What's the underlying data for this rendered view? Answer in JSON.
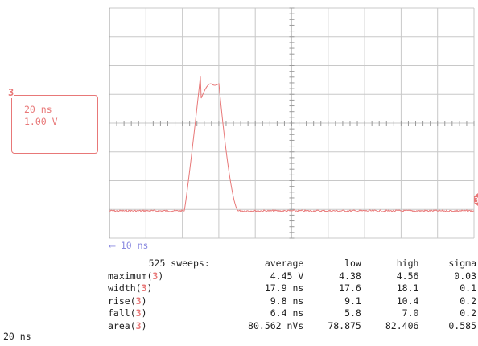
{
  "trace_color": "#e87878",
  "channel": "3",
  "channel_box": {
    "timebase": "20 ns",
    "volts": "1.00 V"
  },
  "delay_label": "⟵ 10 ns",
  "bottom_timebase": "20 ns",
  "stats": {
    "header": {
      "sweeps": "525 sweeps:",
      "average": "average",
      "low": "low",
      "high": "high",
      "sigma": "sigma"
    },
    "rows": [
      {
        "name": "maximum(",
        "average": "4.45 V",
        "low": "4.38",
        "high": "4.56",
        "sigma": "0.03"
      },
      {
        "name": "width(",
        "average": "17.9 ns",
        "low": "17.6",
        "high": "18.1",
        "sigma": "0.1"
      },
      {
        "name": "rise(",
        "average": "9.8 ns",
        "low": "9.1",
        "high": "10.4",
        "sigma": "0.2"
      },
      {
        "name": "fall(",
        "average": "6.4 ns",
        "low": "5.8",
        "high": "7.0",
        "sigma": "0.2"
      },
      {
        "name": "area(",
        "average": "80.562 nVs",
        "low": "78.875",
        "high": "82.406",
        "sigma": "0.585"
      }
    ]
  }
}
